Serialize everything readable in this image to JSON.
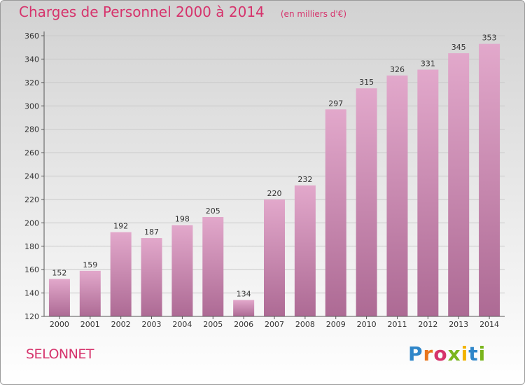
{
  "header": {
    "title": "Charges de Personnel 2000 à 2014",
    "subtitle": "(en milliers d'€)"
  },
  "footer": {
    "commune": "SELONNET",
    "logo_text": "Proxiti"
  },
  "colors": {
    "title": "#d6336c",
    "bar_top": "#e2a8cb",
    "bar_bottom": "#ad6a94",
    "logo": [
      "#2f86c9",
      "#e8761d",
      "#d6336c",
      "#7ab51d",
      "#f2b300",
      "#2f86c9",
      "#7ab51d"
    ]
  },
  "chart_data": {
    "type": "bar",
    "title": "Charges de Personnel 2000 à 2014",
    "subtitle": "(en milliers d'€)",
    "categories": [
      "2000",
      "2001",
      "2002",
      "2003",
      "2004",
      "2005",
      "2006",
      "2007",
      "2008",
      "2009",
      "2010",
      "2011",
      "2012",
      "2013",
      "2014"
    ],
    "values": [
      152,
      159,
      192,
      187,
      198,
      205,
      134,
      220,
      232,
      297,
      315,
      326,
      331,
      345,
      353
    ],
    "ylim": [
      120,
      360
    ],
    "yticks": [
      120,
      140,
      160,
      180,
      200,
      220,
      240,
      260,
      280,
      300,
      320,
      340,
      360
    ],
    "xlabel": "",
    "ylabel": "",
    "grid": true,
    "data_labels": true
  }
}
